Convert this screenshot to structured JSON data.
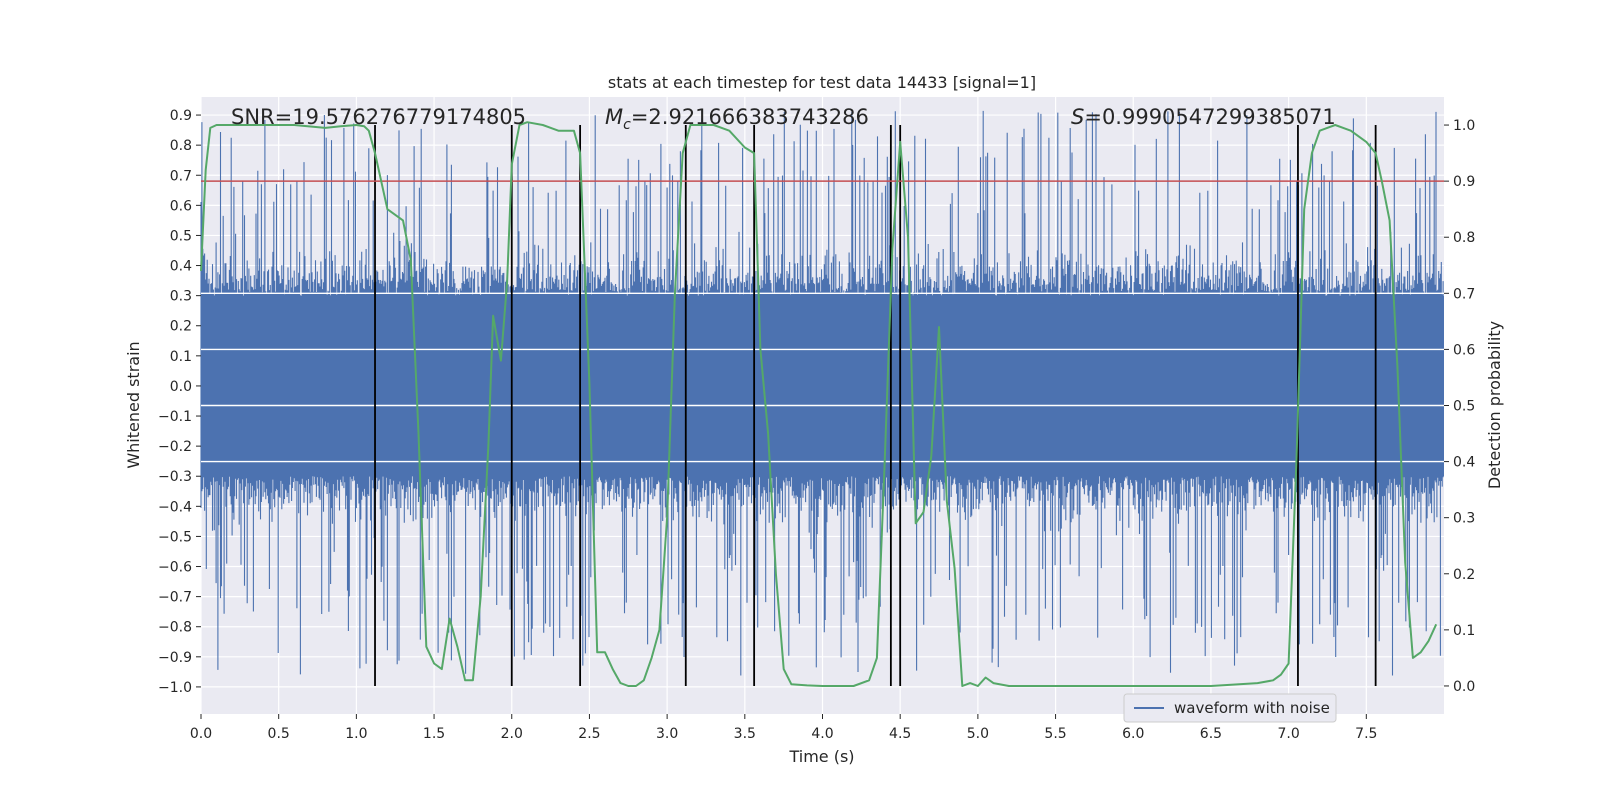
{
  "chart_data": {
    "type": "line",
    "title": "stats at each timestep for test data 14433 [signal=1]",
    "xlabel": "Time (s)",
    "ylabel_left": "Whitened strain",
    "ylabel_right": "Detection probability",
    "xlim": [
      0.0,
      8.0
    ],
    "ylim_left": [
      -1.09,
      0.96
    ],
    "ylim_right": [
      -0.05,
      1.05
    ],
    "x_ticks": [
      "0.0",
      "0.5",
      "1.0",
      "1.5",
      "2.0",
      "2.5",
      "3.0",
      "3.5",
      "4.0",
      "4.5",
      "5.0",
      "5.5",
      "6.0",
      "6.5",
      "7.0",
      "7.5"
    ],
    "left_ticks": [
      "0.9",
      "0.8",
      "0.7",
      "0.6",
      "0.5",
      "0.4",
      "0.3",
      "0.2",
      "0.1",
      "0.0",
      "−0.1",
      "−0.2",
      "−0.3",
      "−0.4",
      "−0.5",
      "−0.6",
      "−0.7",
      "−0.8",
      "−0.9",
      "−1.0"
    ],
    "right_ticks": [
      "1.0",
      "0.9",
      "0.8",
      "0.7",
      "0.6",
      "0.5",
      "0.4",
      "0.3",
      "0.2",
      "0.1",
      "0.0"
    ],
    "grid": true,
    "legend_position": "bottom-right",
    "annotations": {
      "snr": "SNR=19.576276779174805",
      "mc": "=2.921666383743286",
      "s": "=0.9990547299385071"
    },
    "threshold": {
      "value": 0.9,
      "axis": "right",
      "color": "#c44e52"
    },
    "vertical_lines_x": [
      1.12,
      2.0,
      2.44,
      3.12,
      3.56,
      4.44,
      4.5,
      7.06,
      7.56
    ],
    "series": [
      {
        "name": "waveform with noise",
        "axis": "left",
        "color": "#4c72b0",
        "style": "dense-noise",
        "amplitude_envelope": {
          "core": 0.3,
          "typical_max": 0.55,
          "peak_max": 0.92,
          "min": -1.0
        }
      },
      {
        "axis": "right",
        "color": "#55a868",
        "x": [
          0.0,
          0.03,
          0.06,
          0.1,
          0.2,
          0.4,
          0.6,
          0.8,
          0.9,
          1.0,
          1.05,
          1.08,
          1.12,
          1.2,
          1.25,
          1.3,
          1.35,
          1.4,
          1.45,
          1.5,
          1.55,
          1.6,
          1.65,
          1.7,
          1.75,
          1.8,
          1.85,
          1.88,
          1.93,
          1.97,
          2.0,
          2.05,
          2.1,
          2.2,
          2.3,
          2.4,
          2.44,
          2.5,
          2.55,
          2.6,
          2.65,
          2.7,
          2.75,
          2.8,
          2.85,
          2.9,
          2.95,
          3.0,
          3.05,
          3.1,
          3.15,
          3.2,
          3.3,
          3.4,
          3.5,
          3.56,
          3.6,
          3.65,
          3.7,
          3.75,
          3.8,
          3.9,
          4.0,
          4.1,
          4.2,
          4.3,
          4.35,
          4.4,
          4.45,
          4.5,
          4.55,
          4.6,
          4.65,
          4.7,
          4.75,
          4.8,
          4.85,
          4.9,
          4.95,
          5.0,
          5.05,
          5.1,
          5.2,
          5.3,
          5.5,
          6.0,
          6.5,
          6.8,
          6.9,
          6.95,
          7.0,
          7.05,
          7.1,
          7.15,
          7.2,
          7.3,
          7.4,
          7.5,
          7.56,
          7.6,
          7.65,
          7.7,
          7.75,
          7.8,
          7.85,
          7.9,
          7.95
        ],
        "values": [
          0.74,
          0.92,
          0.995,
          1.0,
          1.0,
          1.0,
          1.0,
          0.995,
          0.998,
          1.0,
          0.998,
          0.99,
          0.95,
          0.85,
          0.84,
          0.83,
          0.76,
          0.45,
          0.07,
          0.04,
          0.03,
          0.12,
          0.07,
          0.01,
          0.01,
          0.16,
          0.43,
          0.66,
          0.58,
          0.72,
          0.93,
          1.0,
          1.005,
          1.0,
          0.99,
          0.99,
          0.95,
          0.54,
          0.06,
          0.06,
          0.03,
          0.005,
          0.0,
          0.0,
          0.01,
          0.05,
          0.1,
          0.3,
          0.7,
          0.95,
          1.0,
          1.0,
          1.0,
          0.99,
          0.96,
          0.95,
          0.6,
          0.45,
          0.2,
          0.03,
          0.003,
          0.001,
          0.0,
          0.0,
          0.0,
          0.01,
          0.05,
          0.4,
          0.78,
          0.97,
          0.8,
          0.29,
          0.31,
          0.41,
          0.64,
          0.33,
          0.21,
          0.0,
          0.005,
          0.0,
          0.015,
          0.005,
          0.0,
          0.0,
          0.0,
          0.0,
          0.0,
          0.005,
          0.01,
          0.02,
          0.04,
          0.4,
          0.85,
          0.95,
          0.99,
          1.0,
          0.99,
          0.97,
          0.95,
          0.9,
          0.83,
          0.57,
          0.22,
          0.05,
          0.06,
          0.08,
          0.11
        ]
      }
    ]
  }
}
